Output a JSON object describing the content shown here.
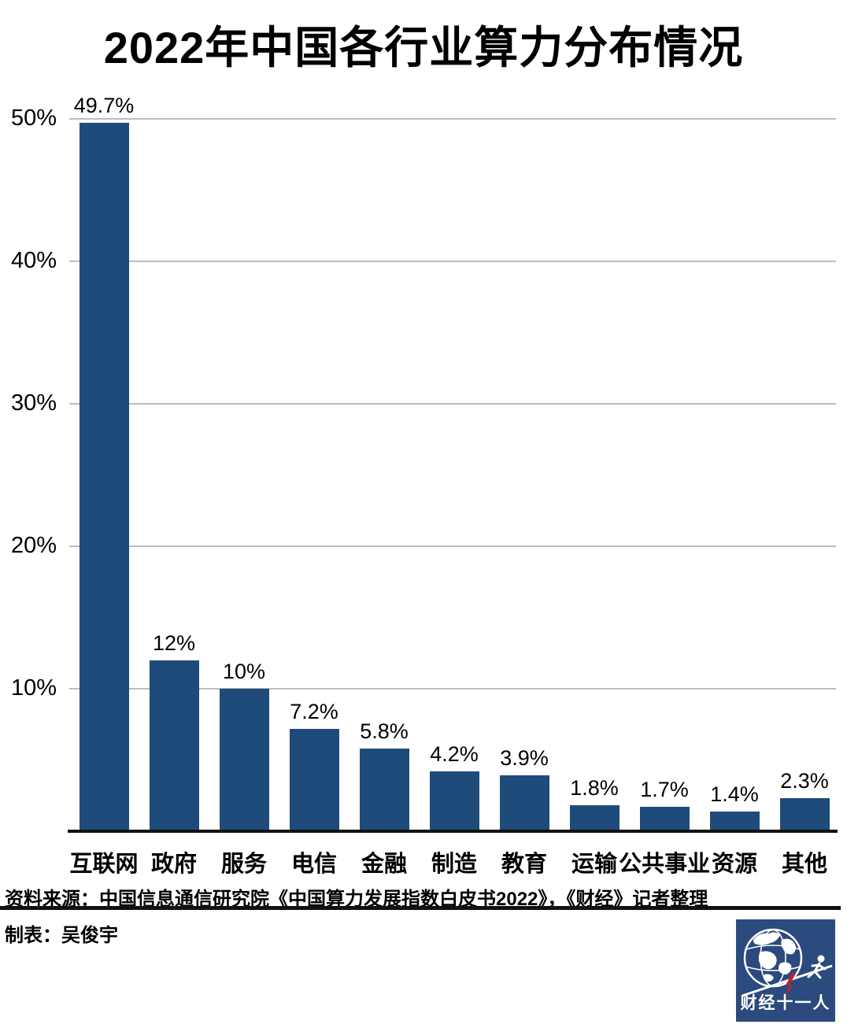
{
  "title": "2022年中国各行业算力分布情况",
  "chart_data": {
    "type": "bar",
    "title": "2022年中国各行业算力分布情况",
    "categories": [
      "互联网",
      "政府",
      "服务",
      "电信",
      "金融",
      "制造",
      "教育",
      "运输",
      "公共事业",
      "资源",
      "其他"
    ],
    "values": [
      49.7,
      12,
      10,
      7.2,
      5.8,
      4.2,
      3.9,
      1.8,
      1.7,
      1.4,
      2.3
    ],
    "value_labels": [
      "49.7%",
      "12%",
      "10%",
      "7.2%",
      "5.8%",
      "4.2%",
      "3.9%",
      "1.8%",
      "1.7%",
      "1.4%",
      "2.3%"
    ],
    "yticks": [
      {
        "label": "50%",
        "value": 50
      },
      {
        "label": "40%",
        "value": 40
      },
      {
        "label": "30%",
        "value": 30
      },
      {
        "label": "20%",
        "value": 20
      },
      {
        "label": "10%",
        "value": 10
      }
    ],
    "ylim": [
      0,
      50
    ],
    "grid": true,
    "legend": false,
    "bar_color": "#1E4B7A",
    "gridline_color": "#bdbdbd",
    "axis_color": "#111111"
  },
  "source": {
    "line1": "资料来源：中国信息通信研究院《中国算力发展指数白皮书2022》，《财经》记者整理",
    "line2": "制表：吴俊宇"
  },
  "logo": {
    "text": "财经十一人",
    "bg_color": "#2B4A7D",
    "bolt_color": "#C8202F",
    "icons": [
      "globe-icon",
      "runner-icon",
      "pole-icon",
      "lightning-icon"
    ]
  }
}
